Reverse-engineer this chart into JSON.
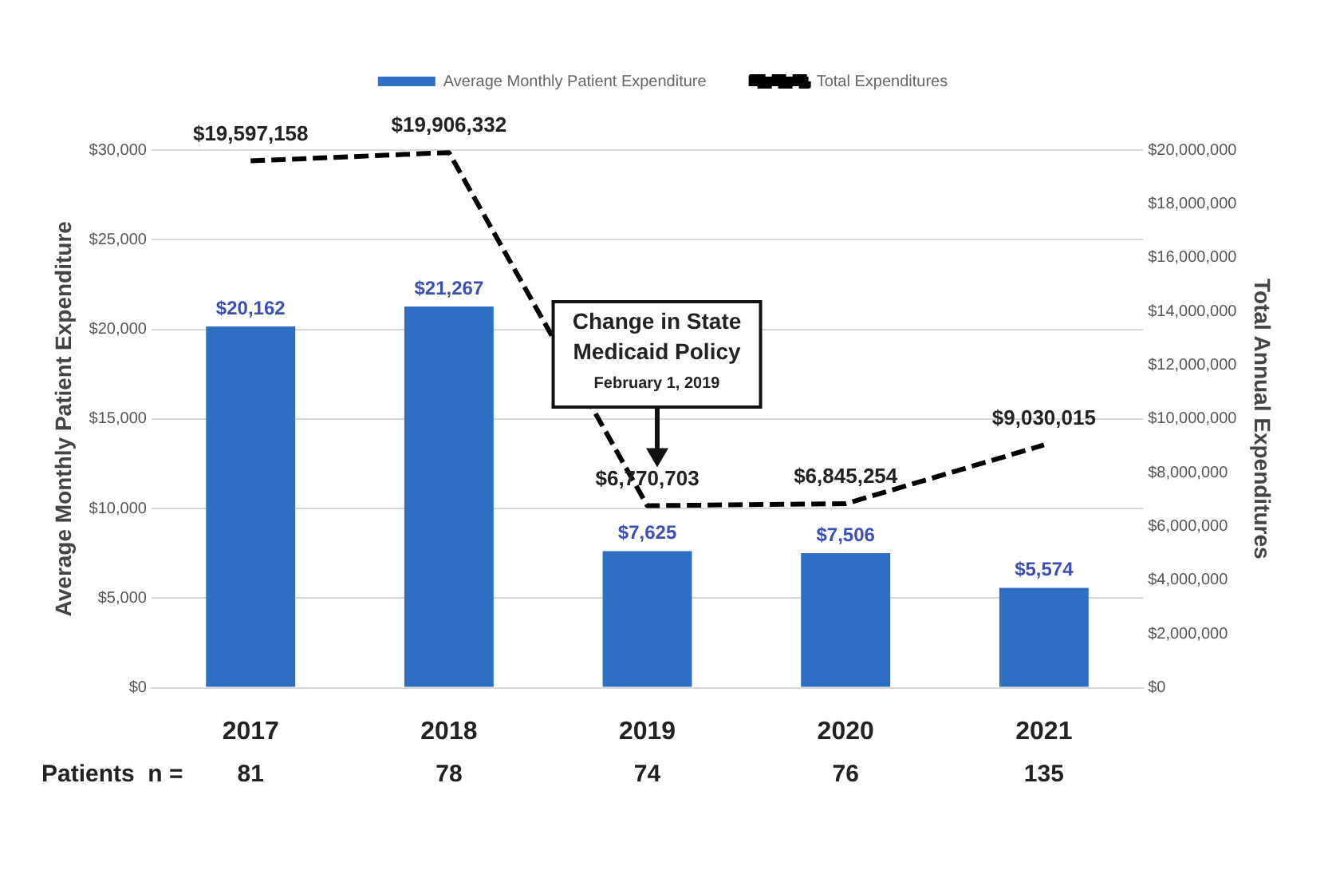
{
  "chart_data": {
    "type": "bar",
    "categories": [
      "2017",
      "2018",
      "2019",
      "2020",
      "2021"
    ],
    "ylabel": "Average Monthly Patient Expenditure",
    "y2label": "Total Annual Expenditures",
    "series": [
      {
        "name": "Average Monthly Patient Expenditure",
        "color": "#2e6fc4",
        "values": [
          20162,
          21267,
          7625,
          7506,
          5574
        ],
        "value_labels": [
          "$20,162",
          "$21,267",
          "$7,625",
          "$7,506",
          "$5,574"
        ]
      },
      {
        "name": "Total Expenditures",
        "type": "line",
        "axis": "y2",
        "color": "#000000",
        "line_style": "dashed",
        "marker": "none",
        "values": [
          19597158,
          19906332,
          6770703,
          6845254,
          9030015
        ],
        "value_labels": [
          "$19,597,158",
          "$19,906,332",
          "$6,770,703",
          "$6,845,254",
          "$9,030,015"
        ]
      }
    ],
    "ylim": [
      0,
      30000
    ],
    "yticks": [
      {
        "value": 0,
        "label": "$0"
      },
      {
        "value": 5000,
        "label": "$5,000"
      },
      {
        "value": 10000,
        "label": "$10,000"
      },
      {
        "value": 15000,
        "label": "$15,000"
      },
      {
        "value": 20000,
        "label": "$20,000"
      },
      {
        "value": 25000,
        "label": "$25,000"
      },
      {
        "value": 30000,
        "label": "$30,000"
      }
    ],
    "y2lim": [
      0,
      20000000
    ],
    "y2ticks": [
      {
        "value": 0,
        "label": "$0"
      },
      {
        "value": 2000000,
        "label": "$2,000,000"
      },
      {
        "value": 4000000,
        "label": "$4,000,000"
      },
      {
        "value": 6000000,
        "label": "$6,000,000"
      },
      {
        "value": 8000000,
        "label": "$8,000,000"
      },
      {
        "value": 10000000,
        "label": "$10,000,000"
      },
      {
        "value": 12000000,
        "label": "$12,000,000"
      },
      {
        "value": 14000000,
        "label": "$14,000,000"
      },
      {
        "value": 16000000,
        "label": "$16,000,000"
      },
      {
        "value": 18000000,
        "label": "$18,000,000"
      },
      {
        "value": 20000000,
        "label": "$20,000,000"
      }
    ],
    "grid": "y",
    "legend": "top",
    "annotations": [
      "Change in State Medicaid Policy",
      "February 1, 2019",
      "Patients  n =",
      "81",
      "78",
      "74",
      "76",
      "135"
    ]
  }
}
